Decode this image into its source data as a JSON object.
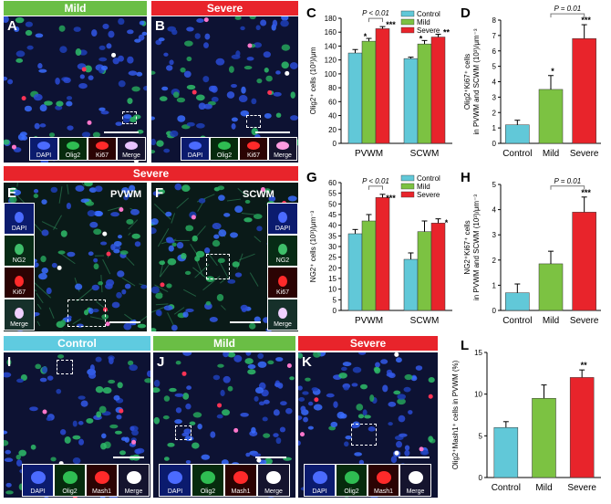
{
  "banners": {
    "mild_top": "Mild",
    "severe_top": "Severe",
    "severe_mid": "Severe",
    "control_bottom": "Control",
    "mild_bottom": "Mild",
    "severe_bottom": "Severe"
  },
  "colors": {
    "control": "#61c8d8",
    "mild": "#7cc242",
    "severe": "#e8242b",
    "banner_green": "#6abe45",
    "banner_red": "#e8242b",
    "banner_cyan": "#5fcbe0"
  },
  "panel_letters": {
    "A": "A",
    "B": "B",
    "C": "C",
    "D": "D",
    "E": "E",
    "F": "F",
    "G": "G",
    "H": "H",
    "I": "I",
    "J": "J",
    "K": "K",
    "L": "L"
  },
  "region_labels": {
    "pvwm": "PVWM",
    "scwm": "SCWM"
  },
  "insets": {
    "a": [
      "DAPI",
      "Olig2",
      "Ki67",
      "Merge"
    ],
    "b": [
      "DAPI",
      "Olig2",
      "Ki67",
      "Merge"
    ],
    "e": [
      "DAPI",
      "NG2",
      "Ki67",
      "Merge"
    ],
    "f": [
      "DAPI",
      "NG2",
      "Ki67",
      "Merge"
    ],
    "i": [
      "DAPI",
      "Olig2",
      "Mash1",
      "Merge"
    ],
    "j": [
      "DAPI",
      "Olig2",
      "Mash1",
      "Merge"
    ],
    "k": [
      "DAPI",
      "Olig2",
      "Mash1",
      "Merge"
    ]
  },
  "chart_data": [
    {
      "id": "C",
      "type": "bar",
      "ylabel": "Olig2⁺ cells (10³)/μm",
      "ylim": [
        0,
        180
      ],
      "yticks": [
        0,
        20,
        40,
        60,
        80,
        100,
        120,
        140,
        160,
        180
      ],
      "categories": [
        "PVWM",
        "SCWM"
      ],
      "series": [
        {
          "name": "Control",
          "values": [
            130,
            122
          ],
          "err": [
            5,
            2
          ]
        },
        {
          "name": "Mild",
          "values": [
            147,
            143
          ],
          "err": [
            4,
            5
          ]
        },
        {
          "name": "Severe",
          "values": [
            165,
            153
          ],
          "err": [
            3,
            4
          ]
        }
      ],
      "sig": {
        "mild": "*",
        "severe": "***",
        "severe2": "**",
        "mild2": "*"
      },
      "pval": "P < 0.01",
      "legend": [
        "Control",
        "Mild",
        "Severe"
      ]
    },
    {
      "id": "D",
      "type": "bar",
      "ylabel1": "Olig2⁺Ki67⁺ cells",
      "ylabel2": "in PVWM and SCWM (10³)/μm⁻³",
      "ylim": [
        0,
        8
      ],
      "yticks": [
        0,
        1,
        2,
        3,
        4,
        5,
        6,
        7,
        8
      ],
      "categories": [
        "Control",
        "Mild",
        "Severe"
      ],
      "values": [
        1.2,
        3.5,
        6.8
      ],
      "err": [
        0.3,
        0.9,
        0.9
      ],
      "sig": [
        "",
        "*",
        "***"
      ],
      "pval": "P = 0.01"
    },
    {
      "id": "G",
      "type": "bar",
      "ylabel": "NG2⁺ cells (10³)/μm⁻³",
      "ylim": [
        0,
        60
      ],
      "yticks": [
        0,
        5,
        10,
        15,
        20,
        25,
        30,
        35,
        40,
        45,
        50,
        55,
        60
      ],
      "categories": [
        "PVWM",
        "SCWM"
      ],
      "series": [
        {
          "name": "Control",
          "values": [
            36,
            24
          ],
          "err": [
            2,
            3
          ]
        },
        {
          "name": "Mild",
          "values": [
            42,
            37
          ],
          "err": [
            3,
            5
          ]
        },
        {
          "name": "Severe",
          "values": [
            53,
            41
          ],
          "err": [
            1.5,
            2
          ]
        }
      ],
      "sig": {
        "severe": "***",
        "severe2": "*"
      },
      "pval": "P < 0.01",
      "legend": [
        "Control",
        "Mild",
        "Severe"
      ]
    },
    {
      "id": "H",
      "type": "bar",
      "ylabel1": "NG2⁺Ki67⁺ cells",
      "ylabel2": "in PVWM and SCWM (10³)/μm⁻³",
      "ylim": [
        0,
        5
      ],
      "yticks": [
        0,
        1,
        2,
        3,
        4,
        5
      ],
      "categories": [
        "Control",
        "Mild",
        "Severe"
      ],
      "values": [
        0.7,
        1.85,
        3.9
      ],
      "err": [
        0.35,
        0.5,
        0.6
      ],
      "sig": [
        "",
        "",
        "***"
      ],
      "pval": "P = 0.01"
    },
    {
      "id": "L",
      "type": "bar",
      "ylabel": "Olig2⁺Mash1⁺ cells in PVWM (%)",
      "ylim": [
        0,
        15
      ],
      "yticks": [
        0,
        5,
        10,
        15
      ],
      "categories": [
        "Control",
        "Mild",
        "Severe"
      ],
      "values": [
        6,
        9.5,
        12
      ],
      "err": [
        0.7,
        1.6,
        0.9
      ],
      "sig": [
        "",
        "",
        "**"
      ]
    }
  ]
}
